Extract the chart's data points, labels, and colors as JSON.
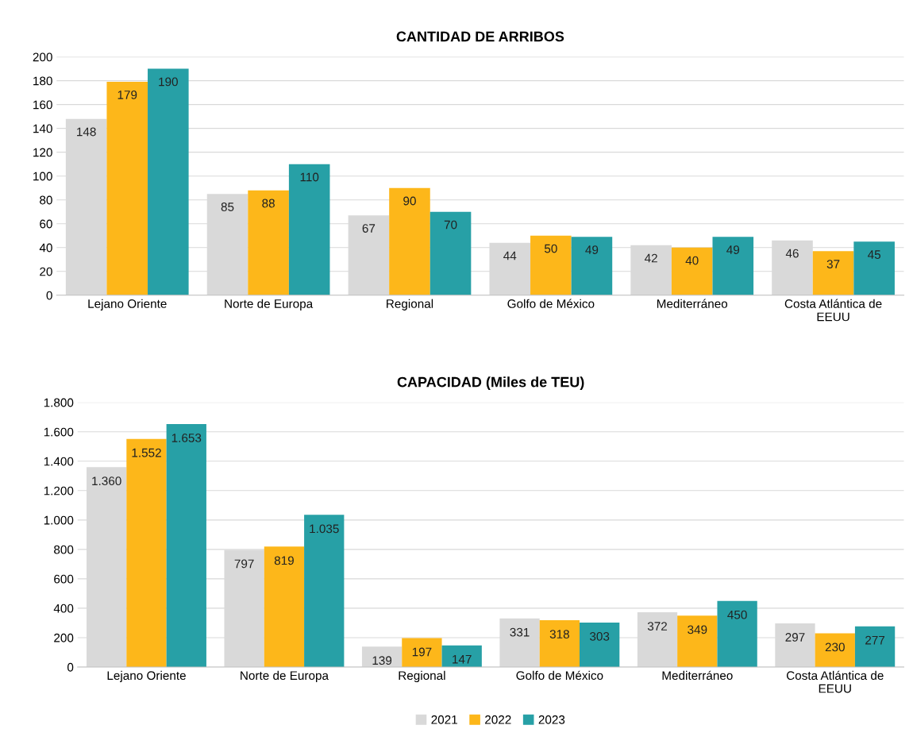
{
  "chart_data": [
    {
      "type": "bar",
      "title": "CANTIDAD DE ARRIBOS",
      "categories": [
        "Lejano Oriente",
        "Norte de Europa",
        "Regional",
        "Golfo de México",
        "Mediterráneo",
        "Costa Atlántica de\nEEUU"
      ],
      "series": [
        {
          "color": "#d9d9d9",
          "values": [
            148,
            85,
            67,
            44,
            42,
            46
          ]
        },
        {
          "color": "#fdb71a",
          "values": [
            179,
            88,
            90,
            50,
            40,
            37
          ]
        },
        {
          "color": "#27a0a6",
          "values": [
            190,
            110,
            70,
            49,
            49,
            45
          ]
        }
      ],
      "ylim": [
        0,
        200
      ],
      "yticks": [
        0,
        20,
        40,
        60,
        80,
        100,
        120,
        140,
        160,
        180,
        200
      ],
      "grid": "y",
      "data_labels": true
    },
    {
      "type": "bar",
      "title": "CAPACIDAD (Miles de TEU)",
      "categories": [
        "Lejano Oriente",
        "Norte de Europa",
        "Regional",
        "Golfo de México",
        "Mediterráneo",
        "Costa Atlántica de\nEEUU"
      ],
      "series": [
        {
          "name": "2021",
          "color": "#d9d9d9",
          "values": [
            1360,
            797,
            139,
            331,
            372,
            297
          ],
          "value_labels": [
            "1.360",
            "797",
            "139",
            "331",
            "372",
            "297"
          ]
        },
        {
          "name": "2022",
          "color": "#fdb71a",
          "values": [
            1552,
            819,
            197,
            318,
            349,
            230
          ],
          "value_labels": [
            "1.552",
            "819",
            "197",
            "318",
            "349",
            "230"
          ]
        },
        {
          "name": "2023",
          "color": "#27a0a6",
          "values": [
            1653,
            1035,
            147,
            303,
            450,
            277
          ],
          "value_labels": [
            "1.653",
            "1.035",
            "147",
            "303",
            "450",
            "277"
          ]
        }
      ],
      "ylim": [
        0,
        1800
      ],
      "yticks": [
        0,
        200,
        400,
        600,
        800,
        {
          "value": 1000,
          "label": "1.000"
        },
        {
          "value": 1200,
          "label": "1.200"
        },
        {
          "value": 1400,
          "label": "1.400"
        },
        {
          "value": 1600,
          "label": "1.600"
        },
        {
          "value": 1800,
          "label": "1.800"
        }
      ],
      "grid": "y",
      "legend": "bottom"
    }
  ]
}
